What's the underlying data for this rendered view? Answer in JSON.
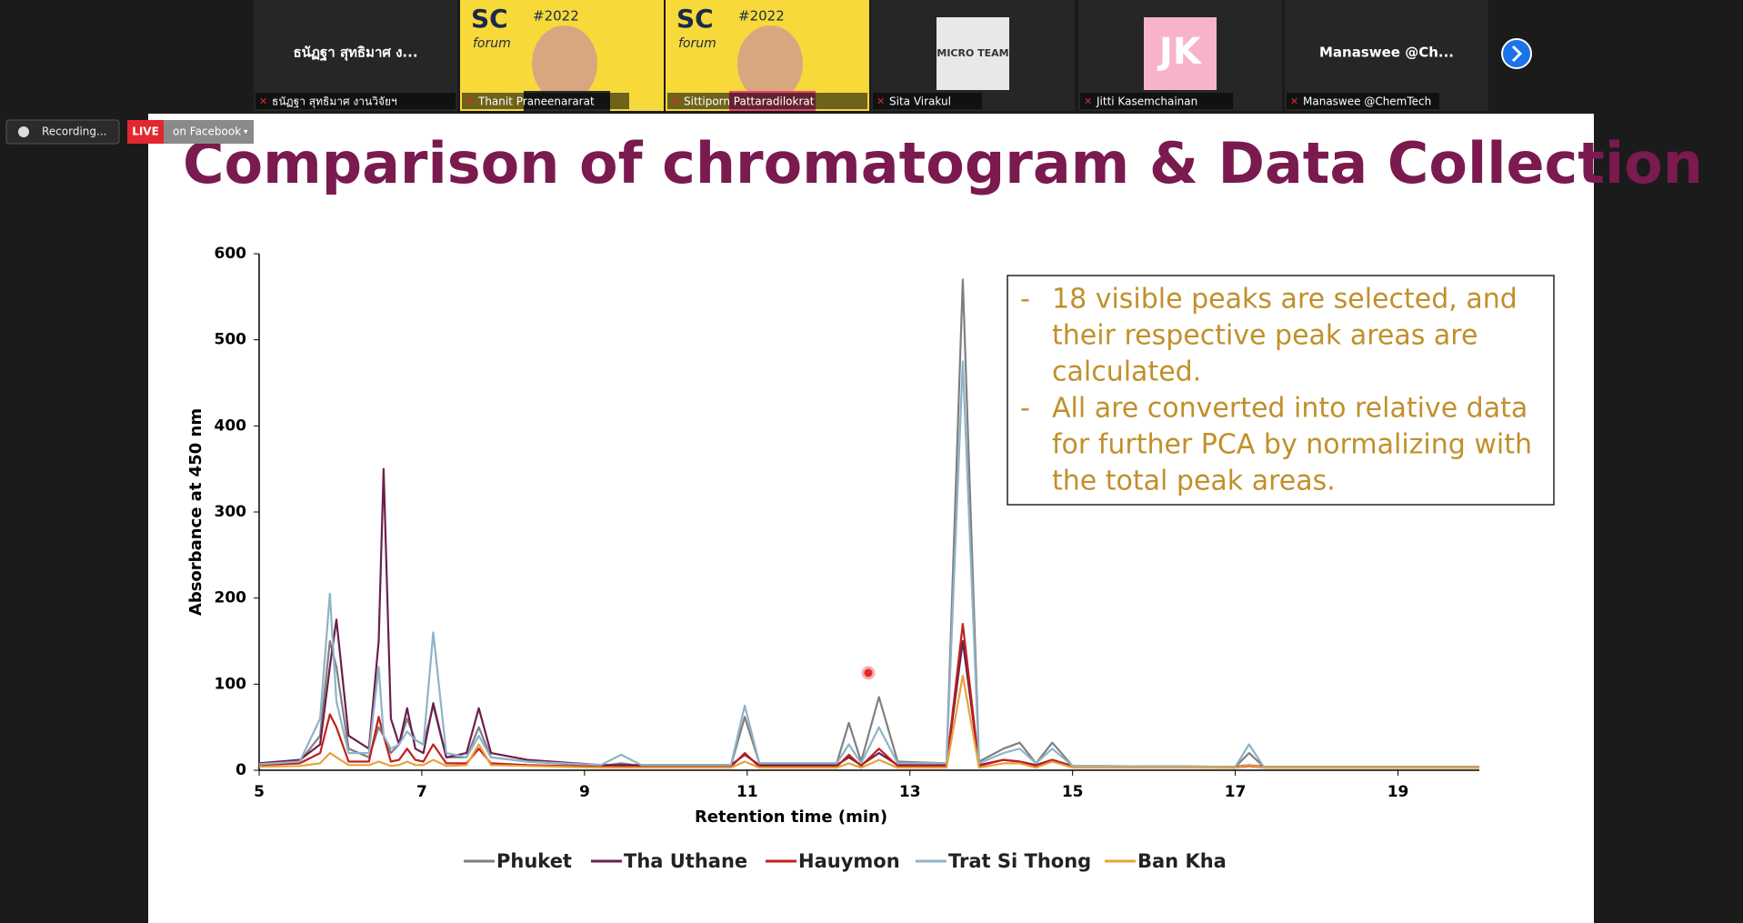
{
  "meeting": {
    "recording": "Recording...",
    "live": "LIVE",
    "live_target": "on Facebook",
    "participants": [
      {
        "display": "ธนัฏฐา สุทธิมาศ ง...",
        "name": "ธนัฏฐา สุทธิมาศ งานวิจัยฯ"
      },
      {
        "logo": "SC",
        "tag": "#2022",
        "sub": "forum",
        "name": "Thanit Praneenararat"
      },
      {
        "logo": "SC",
        "tag": "#2022",
        "sub": "forum",
        "name": "Sittiporn Pattaradilokrat"
      },
      {
        "avatar": "MICRO TEAM",
        "name": "Sita Virakul"
      },
      {
        "avatar": "JK",
        "name": "Jitti Kasemchainan"
      },
      {
        "display": "Manaswee @Ch...",
        "name": "Manaswee @ChemTech"
      }
    ]
  },
  "slide": {
    "title": "Comparison of chromatogram & Data Collection",
    "notes": [
      [
        "18 visible peaks are selected, and",
        "their respective peak areas are",
        "calculated."
      ],
      [
        "All are converted into relative data",
        "for further PCA by normalizing with",
        "the total peak areas."
      ]
    ],
    "bullet": "-"
  },
  "chart_data": {
    "type": "line",
    "x_label": "Retention time (min)",
    "y_label": "Absorbance at 450 nm",
    "x": [
      5,
      5.5,
      5.75,
      5.87,
      5.95,
      6.1,
      6.35,
      6.47,
      6.53,
      6.62,
      6.72,
      6.82,
      6.92,
      7.02,
      7.14,
      7.3,
      7.55,
      7.7,
      7.85,
      8.3,
      9.2,
      9.45,
      9.7,
      10.8,
      10.97,
      11.15,
      12.1,
      12.25,
      12.4,
      12.62,
      12.85,
      13.45,
      13.65,
      13.85,
      14.15,
      14.35,
      14.55,
      14.75,
      15,
      17,
      17.17,
      17.35,
      20
    ],
    "series": [
      {
        "name": "Phuket",
        "color": "#7f7f7f",
        "values": [
          8,
          10,
          40,
          150,
          120,
          25,
          15,
          50,
          40,
          20,
          30,
          60,
          35,
          30,
          75,
          15,
          15,
          50,
          15,
          10,
          5,
          8,
          5,
          5,
          62,
          8,
          8,
          55,
          10,
          85,
          10,
          8,
          570,
          10,
          25,
          32,
          8,
          32,
          5,
          4,
          20,
          4,
          4
        ]
      },
      {
        "name": "Tha Uthane",
        "color": "#6b1f4d",
        "values": [
          8,
          12,
          30,
          120,
          175,
          40,
          25,
          150,
          350,
          60,
          30,
          72,
          25,
          20,
          78,
          15,
          20,
          72,
          20,
          12,
          6,
          6,
          6,
          6,
          18,
          6,
          6,
          15,
          6,
          20,
          6,
          6,
          150,
          6,
          12,
          10,
          6,
          12,
          5,
          4,
          6,
          4,
          4
        ]
      },
      {
        "name": "Hauymon",
        "color": "#c0201c",
        "values": [
          6,
          8,
          20,
          65,
          50,
          10,
          10,
          62,
          40,
          10,
          12,
          25,
          12,
          10,
          30,
          8,
          8,
          25,
          8,
          6,
          4,
          4,
          4,
          4,
          20,
          4,
          4,
          18,
          5,
          25,
          5,
          5,
          170,
          5,
          12,
          10,
          5,
          12,
          4,
          3,
          5,
          3,
          3
        ]
      },
      {
        "name": "Trat Si Thong",
        "color": "#8fb3c8",
        "values": [
          7,
          10,
          60,
          205,
          80,
          20,
          20,
          120,
          40,
          25,
          30,
          45,
          35,
          30,
          160,
          20,
          15,
          40,
          15,
          10,
          6,
          18,
          6,
          6,
          75,
          8,
          8,
          30,
          8,
          50,
          8,
          8,
          475,
          8,
          20,
          25,
          8,
          25,
          5,
          4,
          30,
          4,
          4
        ]
      },
      {
        "name": "Ban Kha",
        "color": "#e8a33a",
        "values": [
          4,
          5,
          8,
          20,
          15,
          6,
          6,
          10,
          8,
          5,
          6,
          10,
          6,
          6,
          12,
          5,
          6,
          30,
          6,
          5,
          3,
          3,
          3,
          3,
          10,
          3,
          3,
          8,
          3,
          12,
          3,
          3,
          110,
          3,
          8,
          8,
          3,
          10,
          3,
          3,
          6,
          3,
          3
        ]
      }
    ],
    "xlim": [
      5,
      20
    ],
    "xticks": [
      5,
      7,
      9,
      11,
      13,
      15,
      17,
      19
    ],
    "ylim": [
      0,
      600
    ],
    "yticks": [
      0,
      100,
      200,
      300,
      400,
      500,
      600
    ],
    "grid": false,
    "legend": "bottom"
  }
}
